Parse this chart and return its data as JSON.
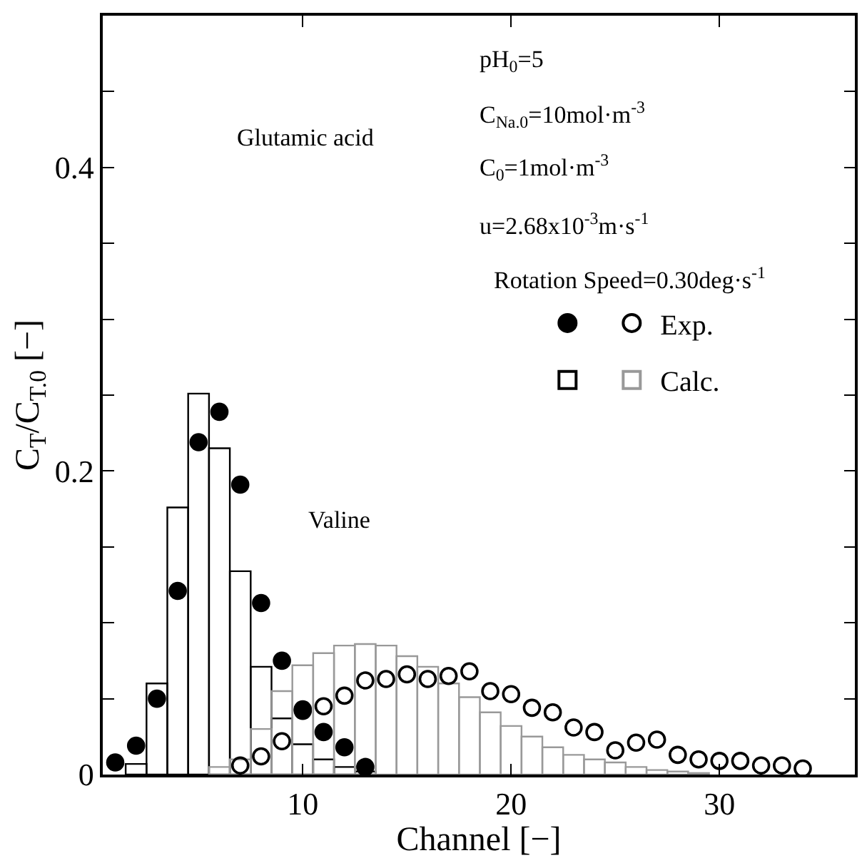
{
  "chart_data": {
    "type": "bar",
    "xlabel": "Channel [−]",
    "ylabel": "C$_{T}$/C$_{T.0}$ [−]",
    "series": [
      {
        "color": "#000000",
        "x": [
          2,
          3,
          4,
          5,
          6,
          7,
          8,
          9,
          10,
          11,
          12,
          13
        ],
        "values": [
          0.007,
          0.06,
          0.176,
          0.251,
          0.215,
          0.134,
          0.071,
          0.037,
          0.02,
          0.01,
          0.005,
          0.002
        ]
      },
      {
        "name": "Calc.",
        "color": "#999999",
        "x": [
          6,
          7,
          8,
          9,
          10,
          11,
          12,
          13,
          14,
          15,
          16,
          17,
          18,
          19,
          20,
          21,
          22,
          23,
          24,
          25,
          26,
          27,
          28,
          29
        ],
        "values": [
          0.005,
          0.01,
          0.03,
          0.055,
          0.072,
          0.08,
          0.085,
          0.086,
          0.085,
          0.078,
          0.071,
          0.06,
          0.051,
          0.041,
          0.032,
          0.025,
          0.018,
          0.013,
          0.01,
          0.008,
          0.005,
          0.003,
          0.002,
          0.001
        ]
      },
      {
        "type": "scatter",
        "color": "#000000",
        "marker": "circle",
        "x": [
          1,
          2,
          3,
          4,
          5,
          6,
          7,
          8,
          9,
          10,
          11,
          12,
          13
        ],
        "values": [
          0.008,
          0.019,
          0.05,
          0.121,
          0.219,
          0.239,
          0.191,
          0.113,
          0.075,
          0.043,
          0.028,
          0.018,
          0.005
        ]
      },
      {
        "type": "scatter",
        "name": "Exp.",
        "color": "#000000",
        "marker": "circle-open",
        "x": [
          7,
          8,
          9,
          10,
          11,
          12,
          13,
          14,
          15,
          16,
          17,
          18,
          19,
          20,
          21,
          22,
          23,
          24,
          25,
          26,
          27,
          28,
          29,
          30,
          31,
          32,
          33,
          34
        ],
        "values": [
          0.006,
          0.012,
          0.022,
          0.042,
          0.045,
          0.052,
          0.062,
          0.063,
          0.066,
          0.063,
          0.065,
          0.068,
          0.055,
          0.053,
          0.044,
          0.041,
          0.031,
          0.028,
          0.016,
          0.021,
          0.023,
          0.013,
          0.01,
          0.009,
          0.009,
          0.006,
          0.006,
          0.004
        ]
      }
    ],
    "xlim": [
      0.4,
      36.5
    ],
    "xticks": [
      10,
      20,
      30
    ],
    "ylim": [
      0,
      0.5
    ],
    "yticks": [
      0,
      {
        "value": 0.05,
        "label": null
      },
      {
        "value": 0.1,
        "label": null
      },
      {
        "value": 0.15,
        "label": null
      },
      0.2,
      {
        "value": 0.25,
        "label": null
      },
      {
        "value": 0.3,
        "label": null
      },
      {
        "value": 0.35,
        "label": null
      },
      0.4,
      {
        "value": 0.45,
        "label": null
      }
    ],
    "annotations": [
      "Glutamic acid",
      "Valine",
      "pH$_{0}$=5",
      "C$_{Na.0}$=10mol·m$^{-3}$",
      "C$_{0}$=1mol·m$^{-3}$",
      "u=2.68x10$^{-3}$m·s$^{-1}$",
      "Rotation Speed=0.30deg·s$^{-1}$"
    ],
    "legend": "top right"
  }
}
